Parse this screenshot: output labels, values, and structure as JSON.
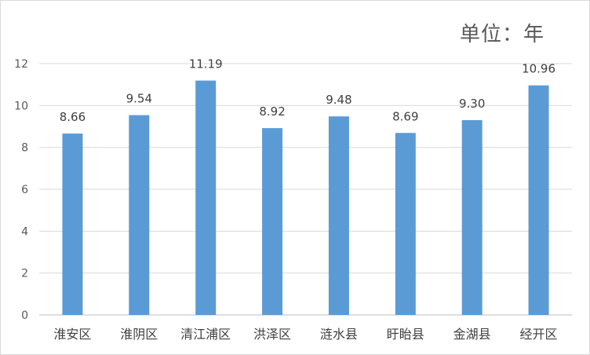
{
  "unit_label": "单位：年",
  "colors": {
    "bar": "#5b9bd5",
    "grid": "#d9d9d9",
    "axis": "#bfbfbf",
    "text": "#404040"
  },
  "chart_data": {
    "type": "bar",
    "title": "",
    "xlabel": "",
    "ylabel": "",
    "categories": [
      "淮安区",
      "淮阴区",
      "清江浦区",
      "洪泽区",
      "涟水县",
      "盱眙县",
      "金湖县",
      "经开区"
    ],
    "values": [
      8.66,
      9.54,
      11.19,
      8.92,
      9.48,
      8.69,
      9.3,
      10.96
    ],
    "value_labels": [
      "8.66",
      "9.54",
      "11.19",
      "8.92",
      "9.48",
      "8.69",
      "9.30",
      "10.96"
    ],
    "ylim": [
      0,
      12
    ],
    "yticks": [
      0,
      2,
      4,
      6,
      8,
      10,
      12
    ],
    "grid": true,
    "legend": "none"
  }
}
